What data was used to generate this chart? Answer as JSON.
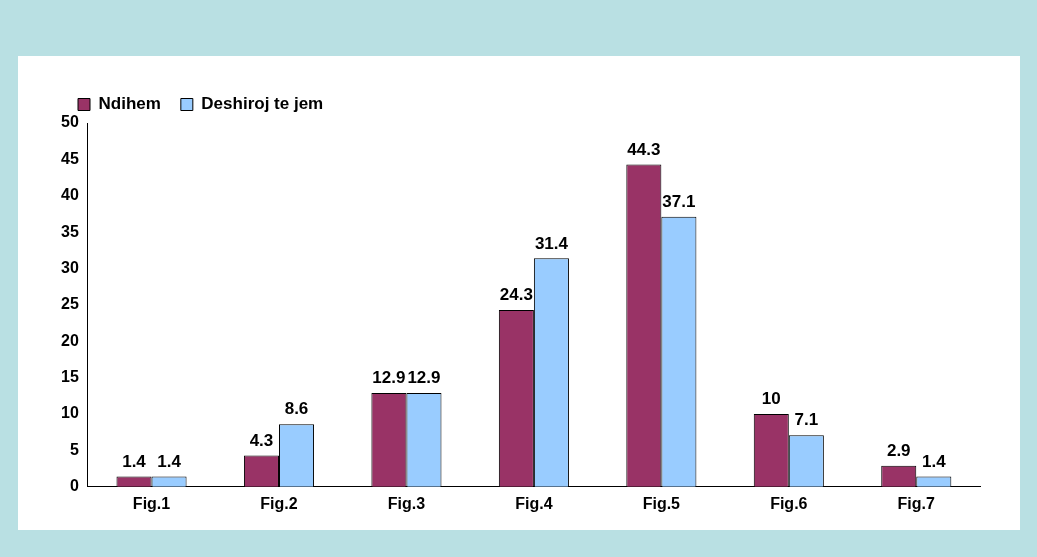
{
  "chart_data": {
    "type": "bar",
    "categories": [
      "Fig.1",
      "Fig.2",
      "Fig.3",
      "Fig.4",
      "Fig.5",
      "Fig.6",
      "Fig.7"
    ],
    "series": [
      {
        "name": "Ndihem",
        "color": "#993366",
        "values": [
          1.4,
          4.3,
          12.9,
          24.3,
          44.3,
          10,
          2.9
        ]
      },
      {
        "name": "Deshiroj te jem",
        "color": "#99ccff",
        "values": [
          1.4,
          8.6,
          12.9,
          31.4,
          37.1,
          7.1,
          1.4
        ]
      }
    ],
    "ylim": [
      0,
      50
    ],
    "yticks": [
      0,
      5,
      10,
      15,
      20,
      25,
      30,
      35,
      40,
      45,
      50
    ],
    "grid": false,
    "legend": "top left",
    "data_labels": true
  }
}
